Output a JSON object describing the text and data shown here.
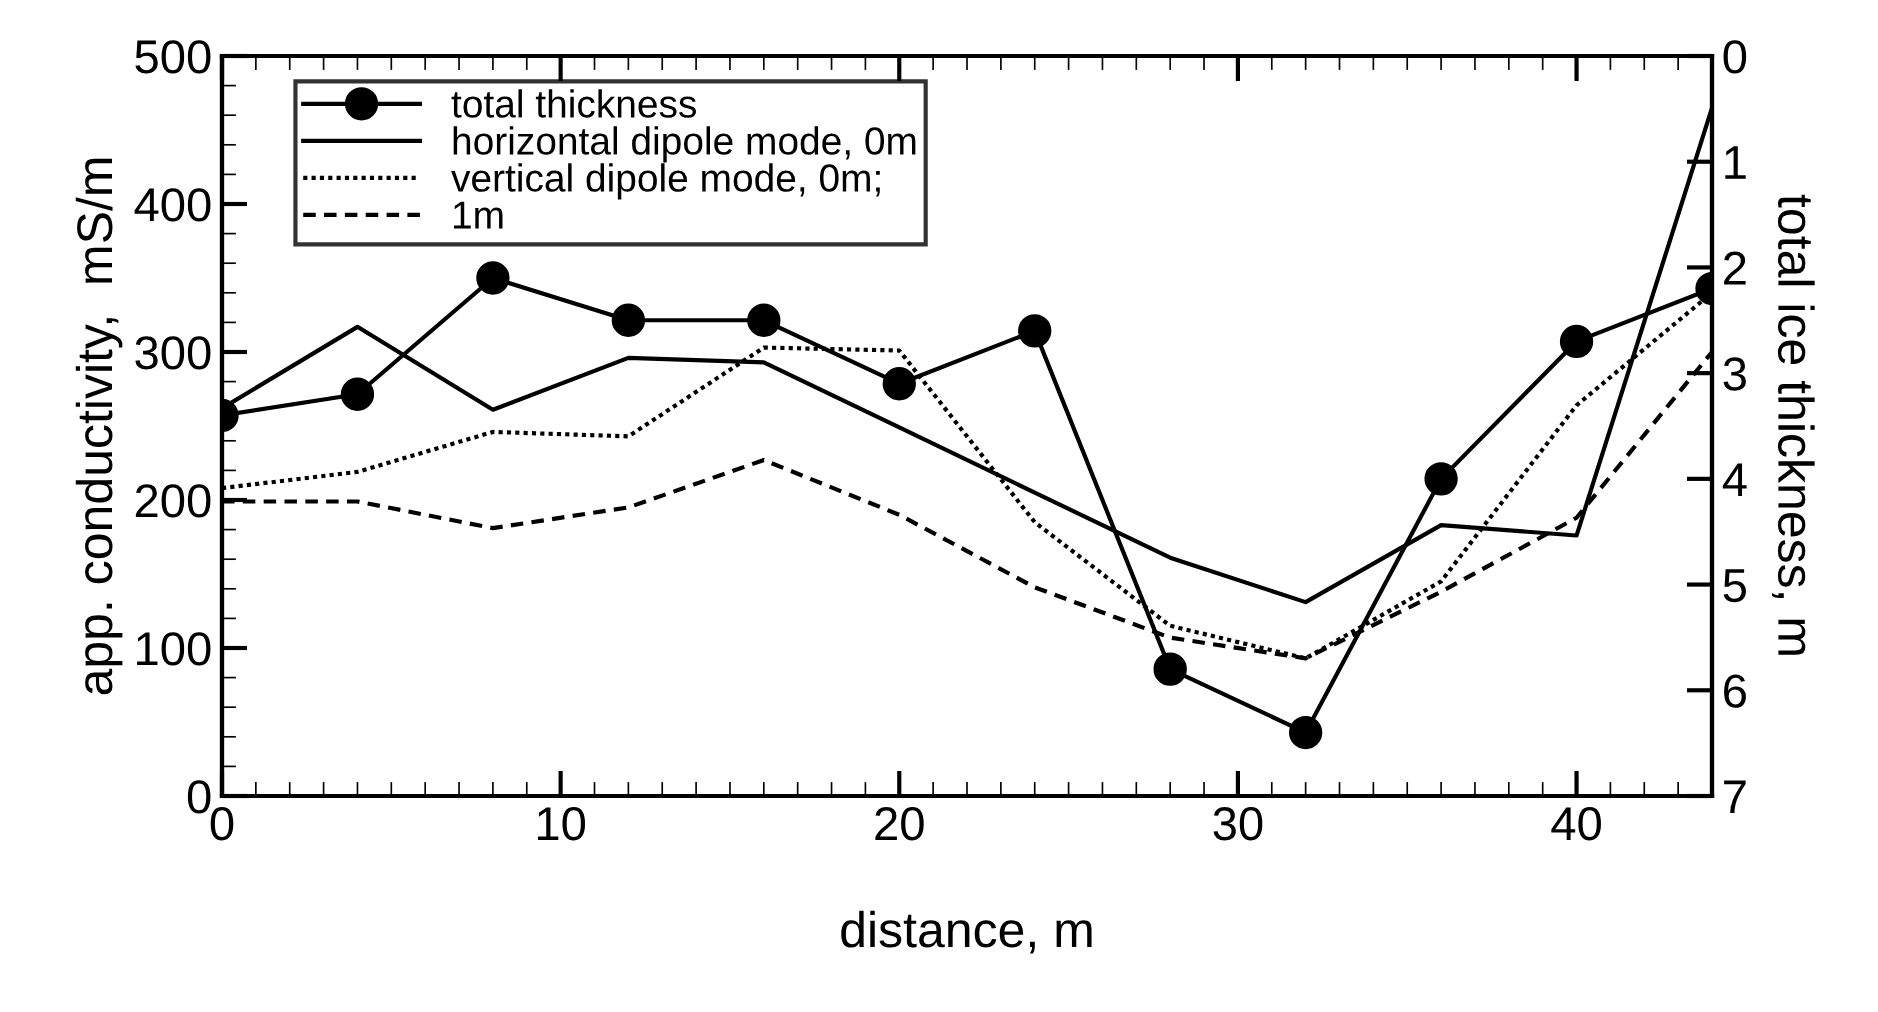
{
  "chart_data": {
    "type": "line",
    "xlabel": "distance, m",
    "ylabel": "app. conductivity,  mS/m",
    "y2label": "total ice thickness, m",
    "x": [
      0,
      4,
      8,
      12,
      16,
      20,
      24,
      28,
      32,
      36,
      40,
      44
    ],
    "series": [
      {
        "name": "total thickness",
        "axis": "y2",
        "color": "#000000",
        "marker": "circle",
        "line_style": "solid",
        "values": [
          3.4,
          3.2,
          2.1,
          2.5,
          2.5,
          3.1,
          2.6,
          5.8,
          6.4,
          4.0,
          2.7,
          2.2
        ]
      },
      {
        "name": "horizontal dipole mode, 0m",
        "color": "#000000",
        "marker": "none",
        "line_style": "solid",
        "values": [
          262,
          317,
          261,
          296,
          293,
          249,
          205,
          161,
          131,
          183,
          176,
          465
        ]
      },
      {
        "name": "vertical dipole mode, 0m;",
        "color": "#000000",
        "marker": "none",
        "line_style": "dotted",
        "values": [
          208,
          219,
          246,
          243,
          303,
          301,
          185,
          115,
          93,
          145,
          264,
          340
        ]
      },
      {
        "name": "1m",
        "color": "#000000",
        "marker": "none",
        "line_style": "dashed",
        "values": [
          199,
          199,
          181,
          195,
          227,
          190,
          141,
          107,
          93,
          138,
          188,
          300
        ]
      }
    ],
    "xlim": [
      0,
      44
    ],
    "xticks": [
      0,
      10,
      20,
      30,
      40
    ],
    "ylim": [
      0,
      500
    ],
    "yticks": [
      0,
      100,
      200,
      300,
      400,
      500
    ],
    "y2lim": [
      7,
      0
    ],
    "y2ticks": [
      0,
      1,
      2,
      3,
      4,
      5,
      6,
      7
    ],
    "grid": false,
    "legend": "top left"
  }
}
